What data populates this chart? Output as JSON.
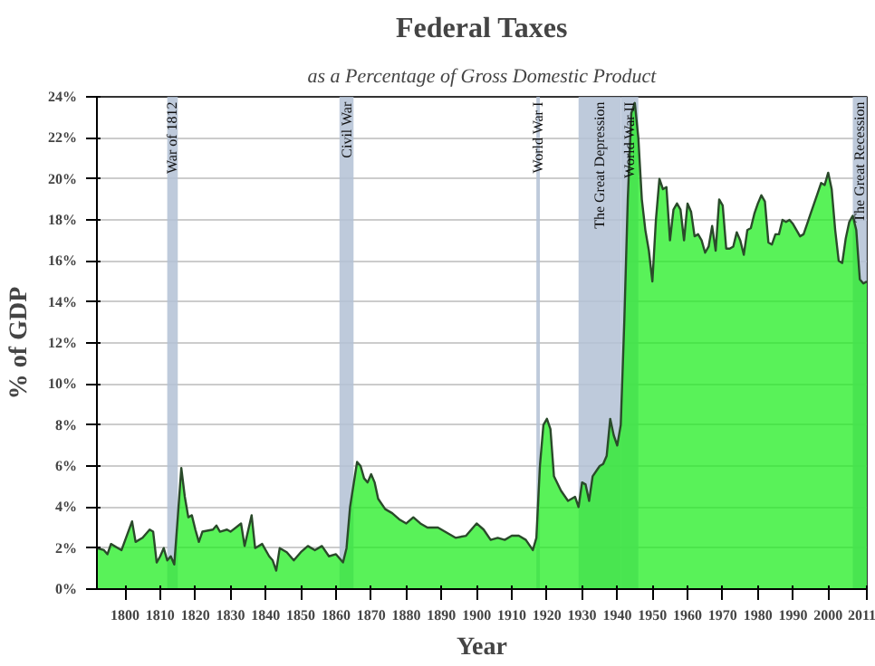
{
  "chart_data": {
    "type": "area",
    "title": "Federal Taxes",
    "subtitle": "as a Percentage of Gross Domestic Product",
    "xlabel": "Year",
    "ylabel": "% of GDP",
    "x": [
      1792,
      1794,
      1795,
      1796,
      1798,
      1799,
      1802,
      1803,
      1805,
      1807,
      1808,
      1809,
      1810,
      1811,
      1812,
      1813,
      1814,
      1815,
      1816,
      1817,
      1818,
      1819,
      1820,
      1821,
      1822,
      1825,
      1826,
      1827,
      1829,
      1830,
      1833,
      1834,
      1836,
      1837,
      1839,
      1841,
      1842,
      1843,
      1844,
      1846,
      1848,
      1850,
      1852,
      1854,
      1856,
      1858,
      1860,
      1862,
      1863,
      1864,
      1866,
      1867,
      1868,
      1869,
      1870,
      1871,
      1872,
      1874,
      1876,
      1878,
      1880,
      1882,
      1884,
      1886,
      1889,
      1892,
      1894,
      1897,
      1900,
      1902,
      1904,
      1906,
      1908,
      1910,
      1912,
      1914,
      1916,
      1917,
      1918,
      1919,
      1920,
      1921,
      1922,
      1924,
      1926,
      1928,
      1929,
      1930,
      1931,
      1932,
      1933,
      1935,
      1936,
      1937,
      1938,
      1939,
      1940,
      1941,
      1942,
      1943,
      1944,
      1945,
      1946,
      1947,
      1948,
      1949,
      1950,
      1951,
      1952,
      1953,
      1954,
      1955,
      1956,
      1957,
      1958,
      1959,
      1960,
      1961,
      1962,
      1963,
      1964,
      1965,
      1966,
      1967,
      1968,
      1969,
      1970,
      1971,
      1972,
      1973,
      1974,
      1975,
      1976,
      1977,
      1978,
      1979,
      1980,
      1981,
      1982,
      1983,
      1984,
      1985,
      1986,
      1987,
      1988,
      1989,
      1990,
      1991,
      1992,
      1993,
      1994,
      1995,
      1996,
      1997,
      1998,
      1999,
      2000,
      2001,
      2002,
      2003,
      2004,
      2005,
      2006,
      2007,
      2008,
      2009,
      2010,
      2011
    ],
    "series": [
      {
        "color": "#22ee22",
        "values": [
          2.0,
          1.9,
          1.7,
          2.2,
          2.0,
          1.9,
          3.3,
          2.3,
          2.5,
          2.9,
          2.8,
          1.3,
          1.6,
          2.0,
          1.4,
          1.6,
          1.2,
          3.5,
          5.9,
          4.5,
          3.5,
          3.6,
          2.9,
          2.3,
          2.8,
          2.9,
          3.1,
          2.8,
          2.9,
          2.8,
          3.2,
          2.1,
          3.6,
          2.0,
          2.2,
          1.6,
          1.4,
          0.9,
          2.0,
          1.8,
          1.4,
          1.8,
          2.1,
          1.9,
          2.1,
          1.6,
          1.7,
          1.3,
          2.0,
          4.0,
          6.2,
          6.0,
          5.4,
          5.2,
          5.6,
          5.2,
          4.4,
          3.9,
          3.7,
          3.4,
          3.2,
          3.5,
          3.2,
          3.0,
          3.0,
          2.7,
          2.5,
          2.6,
          3.2,
          2.9,
          2.4,
          2.5,
          2.4,
          2.6,
          2.6,
          2.4,
          1.9,
          2.5,
          6.0,
          8.0,
          8.3,
          7.8,
          5.5,
          4.8,
          4.3,
          4.5,
          4.0,
          5.2,
          5.1,
          4.3,
          5.5,
          6.0,
          6.1,
          6.5,
          8.3,
          7.5,
          7.0,
          8.0,
          13.0,
          19.0,
          23.2,
          23.7,
          22.0,
          19.0,
          17.5,
          16.5,
          15.0,
          18.0,
          20.0,
          19.5,
          19.6,
          17.0,
          18.5,
          18.8,
          18.5,
          17.0,
          18.8,
          18.4,
          17.2,
          17.3,
          17.0,
          16.4,
          16.7,
          17.7,
          16.5,
          19.0,
          18.7,
          16.6,
          16.6,
          16.7,
          17.4,
          17.0,
          16.3,
          17.5,
          17.6,
          18.3,
          18.8,
          19.2,
          18.9,
          16.9,
          16.8,
          17.3,
          17.3,
          18.0,
          17.9,
          18.0,
          17.8,
          17.5,
          17.2,
          17.3,
          17.8,
          18.3,
          18.8,
          19.3,
          19.8,
          19.7,
          20.3,
          19.5,
          17.5,
          16.0,
          15.9,
          17.1,
          17.9,
          18.2,
          17.5,
          15.1,
          14.9,
          15.0
        ]
      }
    ],
    "xlim": [
      1792,
      2011
    ],
    "xticks": [
      1800,
      1810,
      1820,
      1830,
      1840,
      1850,
      1860,
      1870,
      1880,
      1890,
      1900,
      1910,
      1920,
      1930,
      1940,
      1950,
      1960,
      1970,
      1980,
      1990,
      2000,
      2011
    ],
    "ylim": [
      0,
      24
    ],
    "yticks": [
      {
        "value": 0,
        "label": "0%"
      },
      {
        "value": 2,
        "label": "2%"
      },
      {
        "value": 4,
        "label": "4%"
      },
      {
        "value": 6,
        "label": "6%"
      },
      {
        "value": 8,
        "label": "8%"
      },
      {
        "value": 10,
        "label": "10%"
      },
      {
        "value": 12,
        "label": "12%"
      },
      {
        "value": 14,
        "label": "14%"
      },
      {
        "value": 16,
        "label": "16%"
      },
      {
        "value": 18,
        "label": "18%"
      },
      {
        "value": 20,
        "label": "20%"
      },
      {
        "value": 22,
        "label": "22%"
      },
      {
        "value": 24,
        "label": "24%"
      }
    ],
    "grid": "y",
    "bands": [
      {
        "axis": "x",
        "from": 1812,
        "to": 1815,
        "label": "War of 1812",
        "color": "#b3c1d5"
      },
      {
        "axis": "x",
        "from": 1861,
        "to": 1865,
        "label": "Civil War",
        "color": "#b3c1d5"
      },
      {
        "axis": "x",
        "from": 1917,
        "to": 1918,
        "label": "World War I",
        "color": "#b3c1d5"
      },
      {
        "axis": "x",
        "from": 1929,
        "to": 1941,
        "label": "The Great Depression",
        "color": "#b3c1d5"
      },
      {
        "axis": "x",
        "from": 1941,
        "to": 1946,
        "label": "World War II",
        "color": "#b3c1d5"
      },
      {
        "axis": "x",
        "from": 2007,
        "to": 2011,
        "label": "The Great Recession",
        "color": "#b3c1d5"
      }
    ]
  }
}
